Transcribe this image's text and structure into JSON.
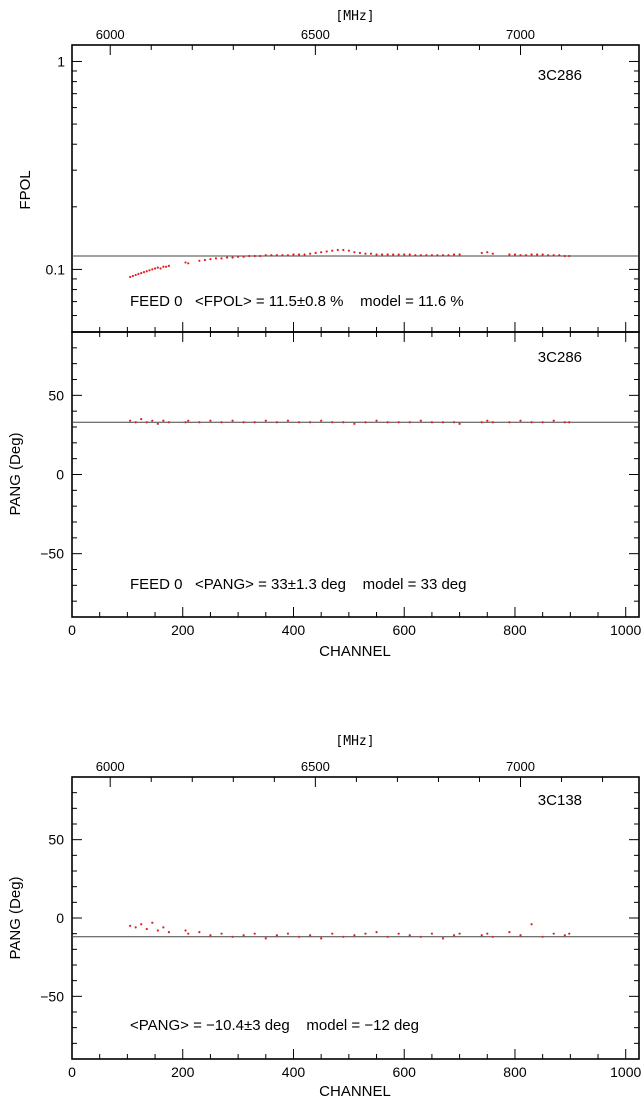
{
  "chart_data": [
    {
      "type": "scatter",
      "panel": "fpol",
      "source": "3C286",
      "ylabel": "FPOL",
      "xlim": [
        0,
        1024
      ],
      "ylog": true,
      "ylim": [
        0.05,
        1.2
      ],
      "yticks": [
        {
          "v": 1,
          "label": "1"
        },
        {
          "v": 0.1,
          "label": "0.1"
        }
      ],
      "top_axis_label": "[MHz]",
      "top_ticks": [
        {
          "v": 6000,
          "label": "6000"
        },
        {
          "v": 6500,
          "label": "6500"
        },
        {
          "v": 7000,
          "label": "7000"
        }
      ],
      "model_value": 0.116,
      "annotation": "FEED 0   <FPOL> = 11.5±0.8 %    model = 11.6 %",
      "series": [
        {
          "values": [
            [
              105,
              0.092
            ],
            [
              110,
              0.093
            ],
            [
              115,
              0.094
            ],
            [
              120,
              0.095
            ],
            [
              125,
              0.096
            ],
            [
              130,
              0.097
            ],
            [
              135,
              0.098
            ],
            [
              140,
              0.099
            ],
            [
              145,
              0.1
            ],
            [
              150,
              0.101
            ],
            [
              155,
              0.102
            ],
            [
              160,
              0.101
            ],
            [
              165,
              0.103
            ],
            [
              170,
              0.103
            ],
            [
              175,
              0.104
            ],
            [
              205,
              0.108
            ],
            [
              210,
              0.107
            ],
            [
              230,
              0.11
            ],
            [
              240,
              0.111
            ],
            [
              250,
              0.112
            ],
            [
              260,
              0.113
            ],
            [
              270,
              0.113
            ],
            [
              280,
              0.114
            ],
            [
              290,
              0.114
            ],
            [
              300,
              0.115
            ],
            [
              310,
              0.115
            ],
            [
              320,
              0.116
            ],
            [
              330,
              0.116
            ],
            [
              340,
              0.116
            ],
            [
              350,
              0.117
            ],
            [
              360,
              0.117
            ],
            [
              370,
              0.117
            ],
            [
              380,
              0.117
            ],
            [
              390,
              0.117
            ],
            [
              400,
              0.118
            ],
            [
              410,
              0.118
            ],
            [
              420,
              0.118
            ],
            [
              430,
              0.119
            ],
            [
              440,
              0.12
            ],
            [
              450,
              0.121
            ],
            [
              460,
              0.122
            ],
            [
              470,
              0.123
            ],
            [
              480,
              0.124
            ],
            [
              490,
              0.124
            ],
            [
              500,
              0.123
            ],
            [
              510,
              0.121
            ],
            [
              520,
              0.12
            ],
            [
              530,
              0.119
            ],
            [
              540,
              0.119
            ],
            [
              550,
              0.118
            ],
            [
              560,
              0.118
            ],
            [
              570,
              0.118
            ],
            [
              580,
              0.118
            ],
            [
              590,
              0.118
            ],
            [
              600,
              0.118
            ],
            [
              610,
              0.118
            ],
            [
              620,
              0.117
            ],
            [
              630,
              0.117
            ],
            [
              640,
              0.117
            ],
            [
              650,
              0.117
            ],
            [
              660,
              0.117
            ],
            [
              670,
              0.117
            ],
            [
              680,
              0.117
            ],
            [
              690,
              0.118
            ],
            [
              700,
              0.118
            ],
            [
              740,
              0.12
            ],
            [
              750,
              0.121
            ],
            [
              760,
              0.119
            ],
            [
              790,
              0.118
            ],
            [
              800,
              0.118
            ],
            [
              810,
              0.117
            ],
            [
              820,
              0.117
            ],
            [
              830,
              0.118
            ],
            [
              840,
              0.118
            ],
            [
              850,
              0.118
            ],
            [
              860,
              0.117
            ],
            [
              870,
              0.117
            ],
            [
              880,
              0.117
            ],
            [
              890,
              0.116
            ],
            [
              898,
              0.116
            ]
          ]
        }
      ]
    },
    {
      "type": "scatter",
      "panel": "pang_3c286",
      "source": "3C286",
      "ylabel": "PANG (Deg)",
      "xlabel": "CHANNEL",
      "xlim": [
        0,
        1024
      ],
      "ylim": [
        -90,
        90
      ],
      "xticks": [
        0,
        200,
        400,
        600,
        800,
        1000
      ],
      "yticks": [
        -50,
        0,
        50
      ],
      "model_value": 33,
      "annotation": "FEED 0   <PANG> = 33±1.3 deg    model = 33 deg",
      "series": [
        {
          "values": [
            [
              105,
              34
            ],
            [
              115,
              33
            ],
            [
              125,
              35
            ],
            [
              135,
              33
            ],
            [
              145,
              34
            ],
            [
              155,
              32
            ],
            [
              165,
              34
            ],
            [
              175,
              33
            ],
            [
              205,
              33
            ],
            [
              210,
              34
            ],
            [
              230,
              33
            ],
            [
              250,
              34
            ],
            [
              270,
              33
            ],
            [
              290,
              34
            ],
            [
              310,
              33
            ],
            [
              330,
              33
            ],
            [
              350,
              34
            ],
            [
              370,
              33
            ],
            [
              390,
              34
            ],
            [
              410,
              33
            ],
            [
              430,
              33
            ],
            [
              450,
              34
            ],
            [
              470,
              33
            ],
            [
              490,
              33
            ],
            [
              510,
              32
            ],
            [
              530,
              33
            ],
            [
              550,
              34
            ],
            [
              570,
              33
            ],
            [
              590,
              33
            ],
            [
              610,
              33
            ],
            [
              630,
              34
            ],
            [
              650,
              33
            ],
            [
              670,
              33
            ],
            [
              690,
              33
            ],
            [
              700,
              32
            ],
            [
              740,
              33
            ],
            [
              750,
              34
            ],
            [
              760,
              33
            ],
            [
              790,
              33
            ],
            [
              810,
              34
            ],
            [
              830,
              33
            ],
            [
              850,
              33
            ],
            [
              870,
              34
            ],
            [
              890,
              33
            ],
            [
              898,
              33
            ]
          ]
        }
      ]
    },
    {
      "type": "scatter",
      "panel": "pang_3c138",
      "source": "3C138",
      "ylabel": "PANG (Deg)",
      "xlabel": "CHANNEL",
      "xlim": [
        0,
        1024
      ],
      "ylim": [
        -90,
        90
      ],
      "xticks": [
        0,
        200,
        400,
        600,
        800,
        1000
      ],
      "yticks": [
        -50,
        0,
        50
      ],
      "top_axis_label": "[MHz]",
      "top_ticks": [
        {
          "v": 6000,
          "label": "6000"
        },
        {
          "v": 6500,
          "label": "6500"
        },
        {
          "v": 7000,
          "label": "7000"
        }
      ],
      "model_value": -12,
      "annotation": "<PANG> = −10.4±3 deg    model = −12 deg",
      "series": [
        {
          "values": [
            [
              105,
              -5
            ],
            [
              115,
              -6
            ],
            [
              125,
              -4
            ],
            [
              135,
              -7
            ],
            [
              145,
              -3
            ],
            [
              155,
              -8
            ],
            [
              165,
              -6
            ],
            [
              175,
              -9
            ],
            [
              205,
              -8
            ],
            [
              210,
              -10
            ],
            [
              230,
              -9
            ],
            [
              250,
              -11
            ],
            [
              270,
              -10
            ],
            [
              290,
              -12
            ],
            [
              310,
              -11
            ],
            [
              330,
              -10
            ],
            [
              350,
              -13
            ],
            [
              370,
              -11
            ],
            [
              390,
              -10
            ],
            [
              410,
              -12
            ],
            [
              430,
              -11
            ],
            [
              450,
              -13
            ],
            [
              470,
              -10
            ],
            [
              490,
              -12
            ],
            [
              510,
              -11
            ],
            [
              530,
              -10
            ],
            [
              550,
              -9
            ],
            [
              570,
              -12
            ],
            [
              590,
              -10
            ],
            [
              610,
              -11
            ],
            [
              630,
              -12
            ],
            [
              650,
              -10
            ],
            [
              670,
              -13
            ],
            [
              690,
              -11
            ],
            [
              700,
              -10
            ],
            [
              740,
              -11
            ],
            [
              750,
              -10
            ],
            [
              760,
              -12
            ],
            [
              790,
              -9
            ],
            [
              810,
              -11
            ],
            [
              830,
              -4
            ],
            [
              850,
              -12
            ],
            [
              870,
              -10
            ],
            [
              890,
              -11
            ],
            [
              898,
              -10
            ]
          ]
        }
      ]
    }
  ]
}
